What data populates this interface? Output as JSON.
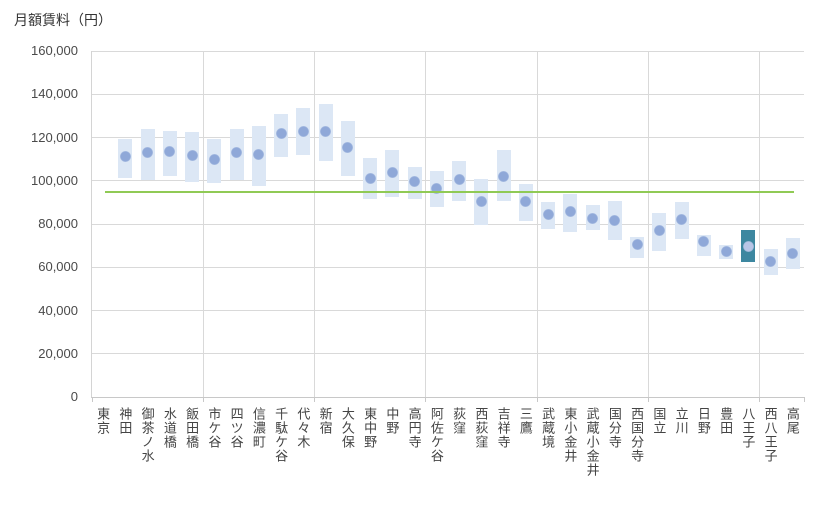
{
  "chart_data": {
    "type": "range-bar",
    "title": "月額賃料（円）",
    "categories": [
      "東京",
      "神田",
      "御茶ノ水",
      "水道橋",
      "飯田橋",
      "市ケ谷",
      "四ツ谷",
      "信濃町",
      "千駄ケ谷",
      "代々木",
      "新宿",
      "大久保",
      "東中野",
      "中野",
      "高円寺",
      "阿佐ケ谷",
      "荻窪",
      "西荻窪",
      "吉祥寺",
      "三鷹",
      "武蔵境",
      "東小金井",
      "武蔵小金井",
      "国分寺",
      "西国分寺",
      "国立",
      "立川",
      "日野",
      "豊田",
      "八王子",
      "西八王子",
      "高尾"
    ],
    "series": [
      {
        "name": "min",
        "values": [
          null,
          101500,
          100500,
          102000,
          99500,
          99000,
          100500,
          97500,
          111000,
          112000,
          109000,
          102000,
          91500,
          92500,
          91500,
          88000,
          90500,
          79500,
          90500,
          81500,
          77500,
          76500,
          77000,
          72500,
          64500,
          67500,
          73000,
          65000,
          64000,
          62500,
          56500,
          59000
        ]
      },
      {
        "name": "median",
        "values": [
          null,
          111000,
          113000,
          113500,
          111500,
          110000,
          113000,
          112000,
          122000,
          123000,
          123000,
          115500,
          101000,
          104000,
          99500,
          96500,
          100500,
          90500,
          102000,
          90500,
          84500,
          86000,
          82500,
          81500,
          70500,
          77000,
          82000,
          72000,
          67500,
          69500,
          62500,
          66500
        ]
      },
      {
        "name": "max",
        "values": [
          null,
          119500,
          124000,
          123000,
          122500,
          119500,
          124000,
          125500,
          131000,
          133500,
          135500,
          127500,
          110500,
          114000,
          106500,
          104500,
          109000,
          101000,
          114000,
          98500,
          90000,
          94000,
          89000,
          90500,
          74000,
          85000,
          90000,
          75000,
          70500,
          77000,
          68500,
          73500
        ]
      }
    ],
    "highlight_category": "八王子",
    "highlight_index": 29,
    "reference_line": {
      "value": 94800
    },
    "ylim": [
      0,
      160000
    ],
    "ytick_step": 20000,
    "ytick_labels": [
      "0",
      "20,000",
      "40,000",
      "60,000",
      "80,000",
      "100,000",
      "120,000",
      "140,000",
      "160,000"
    ],
    "x_grid_boundaries": [
      5,
      10,
      15,
      20,
      25,
      30
    ],
    "x_tick_boundaries": [
      0,
      5,
      10,
      15,
      20,
      25,
      30,
      32
    ],
    "grid": true,
    "legend": "none",
    "colors": {
      "bar": "#dce7f5",
      "dot": "#8fa8d8",
      "highlight_bar": "#3d87a0",
      "highlight_dot": "#b8c5e6",
      "reference": "#90ca55",
      "grid": "#d9d9d9",
      "axis": "#c8c8c8",
      "text": "#444444"
    }
  }
}
